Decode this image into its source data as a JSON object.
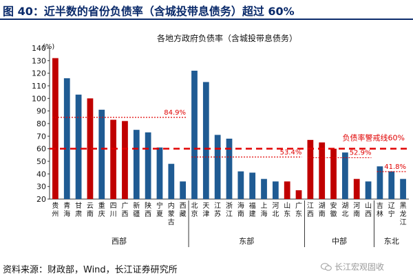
{
  "header": {
    "title": "图 40：近半数的省份负债率（含城投带息债务）超过 60%"
  },
  "footer": {
    "source": "资料来源：财政部，Wind，长江证券研究所",
    "watermark": "长江宏观固收"
  },
  "chart_data": {
    "type": "bar",
    "title": "各地方政府负债率（含城投带息债务）",
    "ylabel": "(%)",
    "ylim": [
      20,
      140
    ],
    "yticks": [
      20,
      30,
      40,
      50,
      60,
      70,
      80,
      90,
      100,
      110,
      120,
      130,
      140
    ],
    "grid": false,
    "colors": {
      "red": "#c00000",
      "blue": "#1f5b93",
      "line": "#e00000"
    },
    "categories": [
      "贵州",
      "青海",
      "甘肃",
      "云南",
      "重庆",
      "四川",
      "广西",
      "新疆",
      "陕西",
      "宁夏",
      "内蒙古",
      "西藏",
      "北京",
      "天津",
      "江苏",
      "浙江",
      "海南",
      "福建",
      "上海",
      "河北",
      "山东",
      "广东",
      "江西",
      "湖南",
      "安徽",
      "湖北",
      "河南",
      "山西",
      "吉林",
      "辽宁",
      "黑龙江"
    ],
    "values": [
      132,
      116,
      103,
      100,
      91,
      83,
      82,
      75,
      73,
      61,
      48,
      34,
      122,
      113,
      71,
      68,
      42,
      41,
      36,
      34,
      34,
      27,
      67,
      65,
      60,
      57,
      36,
      34,
      46,
      42,
      36
    ],
    "bar_colors": [
      "red",
      "blue",
      "blue",
      "red",
      "blue",
      "red",
      "red",
      "blue",
      "blue",
      "blue",
      "blue",
      "blue",
      "blue",
      "blue",
      "blue",
      "blue",
      "blue",
      "blue",
      "blue",
      "blue",
      "red",
      "red",
      "red",
      "red",
      "red",
      "blue",
      "red",
      "blue",
      "blue",
      "blue",
      "blue"
    ],
    "groups": [
      {
        "name": "西部",
        "start": 0,
        "end": 11
      },
      {
        "name": "东部",
        "start": 12,
        "end": 21
      },
      {
        "name": "中部",
        "start": 22,
        "end": 27
      },
      {
        "name": "东北",
        "start": 28,
        "end": 30
      }
    ],
    "reference_line": {
      "value": 60,
      "label": "负债率警戒线60%"
    },
    "group_averages": [
      {
        "group": "西部",
        "value": 84.9,
        "label": "84.9%"
      },
      {
        "group": "东部",
        "value": 53.4,
        "label": "53.4%"
      },
      {
        "group": "中部",
        "value": 52.9,
        "label": "52.9%"
      },
      {
        "group": "东北",
        "value": 41.8,
        "label": "41.8%"
      }
    ]
  }
}
